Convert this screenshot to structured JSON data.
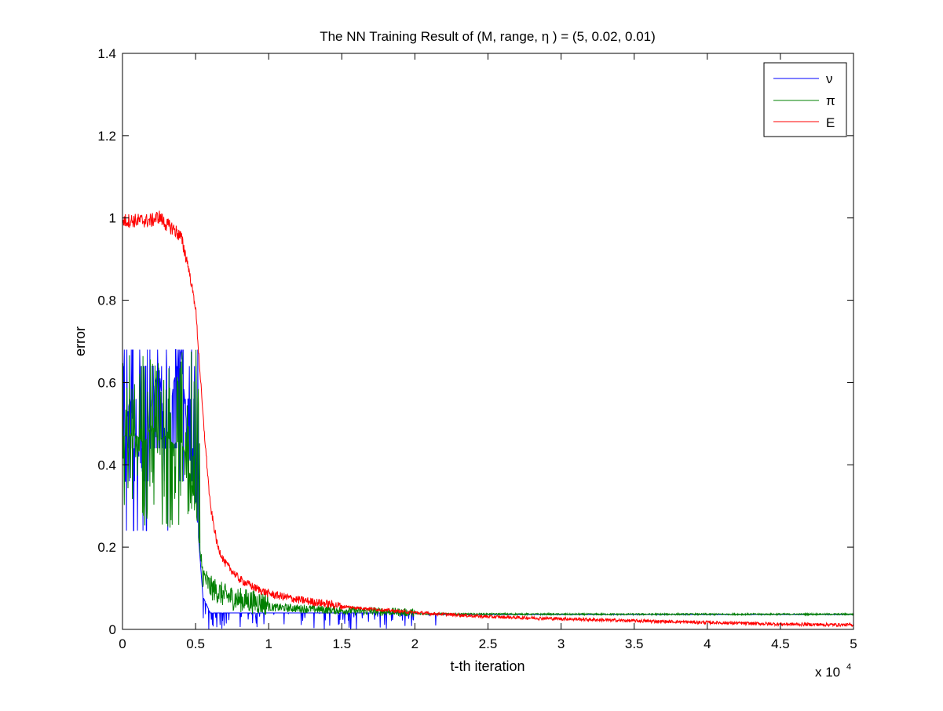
{
  "chart_data": {
    "type": "line",
    "title": "The NN Training Result of (M, range, η ) = (5, 0.02, 0.01)",
    "xlabel": "t-th iteration",
    "ylabel": "error",
    "x_multiplier_label": "x 10",
    "x_multiplier_exp": "4",
    "xlim": [
      0,
      50000
    ],
    "ylim": [
      0,
      1.4
    ],
    "grid": false,
    "legend_position": "top-right",
    "x_ticks": [
      0,
      5000,
      10000,
      15000,
      20000,
      25000,
      30000,
      35000,
      40000,
      45000,
      50000
    ],
    "x_tick_labels": [
      "0",
      "0.5",
      "1",
      "1.5",
      "2",
      "2.5",
      "3",
      "3.5",
      "4",
      "4.5",
      "5"
    ],
    "y_ticks": [
      0,
      0.2,
      0.4,
      0.6,
      0.8,
      1.0,
      1.2,
      1.4
    ],
    "y_tick_labels": [
      "0",
      "0.2",
      "0.4",
      "0.6",
      "0.8",
      "1",
      "1.2",
      "1.4"
    ],
    "series": [
      {
        "name": "ν",
        "color": "#0000ff",
        "description_points": {
          "x": [
            0,
            500,
            1000,
            1500,
            2000,
            2500,
            3000,
            3500,
            4000,
            4500,
            5000,
            5500,
            6000,
            7000,
            8000,
            10000,
            15000,
            20000,
            21000,
            30000,
            40000,
            50000
          ],
          "y": [
            0.44,
            0.56,
            0.44,
            0.36,
            0.56,
            0.64,
            0.44,
            0.6,
            0.68,
            0.44,
            0.32,
            0.08,
            0.04,
            0.04,
            0.04,
            0.04,
            0.04,
            0.04,
            0.036,
            0.036,
            0.036,
            0.036
          ]
        }
      },
      {
        "name": "π",
        "color": "#008000",
        "description_points": {
          "x": [
            0,
            500,
            1000,
            1500,
            2000,
            2500,
            3000,
            3500,
            4000,
            4500,
            5000,
            5500,
            6000,
            7000,
            8000,
            10000,
            15000,
            20000,
            30000,
            40000,
            50000
          ],
          "y": [
            0.47,
            0.47,
            0.47,
            0.45,
            0.5,
            0.46,
            0.47,
            0.45,
            0.46,
            0.4,
            0.3,
            0.12,
            0.09,
            0.07,
            0.06,
            0.05,
            0.042,
            0.037,
            0.036,
            0.036,
            0.036
          ]
        }
      },
      {
        "name": "E",
        "color": "#ff0000",
        "description_points": {
          "x": [
            0,
            1000,
            2000,
            2500,
            3000,
            3500,
            4000,
            4500,
            5000,
            5250,
            5500,
            6000,
            6500,
            7000,
            8000,
            9000,
            10000,
            12000,
            15000,
            20000,
            25000,
            30000,
            35000,
            40000,
            45000,
            50000
          ],
          "y": [
            0.99,
            0.99,
            0.99,
            1.0,
            0.98,
            0.97,
            0.95,
            0.88,
            0.78,
            0.65,
            0.52,
            0.3,
            0.2,
            0.16,
            0.12,
            0.1,
            0.085,
            0.07,
            0.055,
            0.04,
            0.03,
            0.025,
            0.02,
            0.016,
            0.012,
            0.01
          ]
        }
      }
    ]
  }
}
